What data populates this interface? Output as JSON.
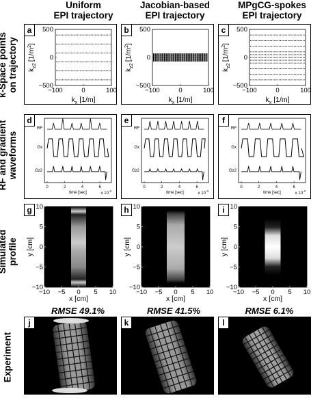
{
  "columns": [
    {
      "title_line1": "Uniform",
      "title_line2": "EPI trajectory",
      "rmse": "RMSE 49.1%"
    },
    {
      "title_line1": "Jacobian-based",
      "title_line2": "EPI trajectory",
      "rmse": "RMSE 41.5%"
    },
    {
      "title_line1": "MPgCG-spokes",
      "title_line2": "EPI trajectory",
      "rmse": "RMSE 6.1%"
    }
  ],
  "rows": [
    {
      "label_line1": "k-Space points",
      "label_line2": "on trajectory"
    },
    {
      "label_line1": "RF and gradient",
      "label_line2": "waveforms"
    },
    {
      "label_line1": "Simulated",
      "label_line2": "profile"
    },
    {
      "label_line1": "Experiment",
      "label_line2": ""
    }
  ],
  "panel_letters": [
    "a",
    "b",
    "c",
    "d",
    "e",
    "f",
    "g",
    "h",
    "i",
    "j",
    "k",
    "l"
  ],
  "kspace_axes": {
    "ylabel": "k",
    "ylabel_sub": "z2",
    "ylabel_unit": "[1/m",
    "ylabel_sup": "2",
    "ylabel_end": "]",
    "xlabel": "k",
    "xlabel_sub": "x",
    "xlabel_unit": "[1/m]",
    "yticks": [
      "500",
      "0",
      "−500"
    ],
    "xticks": [
      "−100",
      "0",
      "100"
    ]
  },
  "waveform_axes": {
    "channels": [
      "RF",
      "Gx",
      "Gz2"
    ],
    "xticks": [
      "0",
      "2",
      "4",
      "6"
    ],
    "xlabel": "time [sec]",
    "x_exponent": "x 10",
    "x_exponent_power": "-3"
  },
  "profile_axes": {
    "ylabel": "y [cm]",
    "xlabel": "x [cm]",
    "yticks": [
      "10",
      "5",
      "0",
      "−5",
      "−10"
    ],
    "xticks": [
      "−10",
      "−5",
      "0",
      "5",
      "10"
    ]
  },
  "chart_data": [
    {
      "type": "scatter",
      "panel": "a",
      "x_range": [
        -100,
        100
      ],
      "y_range": [
        -500,
        500
      ],
      "kz2_lines": [
        -400,
        -240,
        -80,
        80,
        240,
        400
      ]
    },
    {
      "type": "scatter",
      "panel": "b",
      "x_range": [
        -100,
        100
      ],
      "y_range": [
        -500,
        500
      ],
      "kz2_lines": [
        -60,
        -40,
        -20,
        0,
        20,
        40,
        60
      ]
    },
    {
      "type": "scatter",
      "panel": "c",
      "x_range": [
        -100,
        100
      ],
      "y_range": [
        -500,
        500
      ],
      "kz2_lines": [
        -400,
        -300,
        -200,
        -100,
        -50,
        0,
        50,
        100,
        200,
        300,
        400
      ]
    },
    {
      "type": "line",
      "panel": "d",
      "x_range": [
        0,
        7
      ],
      "x_unit_exponent": -3
    },
    {
      "type": "line",
      "panel": "e",
      "x_range": [
        0,
        7
      ],
      "x_unit_exponent": -3
    },
    {
      "type": "line",
      "panel": "f",
      "x_range": [
        0,
        7
      ],
      "x_unit_exponent": -3
    },
    {
      "type": "heatmap",
      "panel": "g",
      "x_range": [
        -10,
        10
      ],
      "y_range": [
        -10,
        10
      ]
    },
    {
      "type": "heatmap",
      "panel": "h",
      "x_range": [
        -10,
        10
      ],
      "y_range": [
        -10,
        10
      ]
    },
    {
      "type": "heatmap",
      "panel": "i",
      "x_range": [
        -10,
        10
      ],
      "y_range": [
        -10,
        10
      ]
    }
  ]
}
